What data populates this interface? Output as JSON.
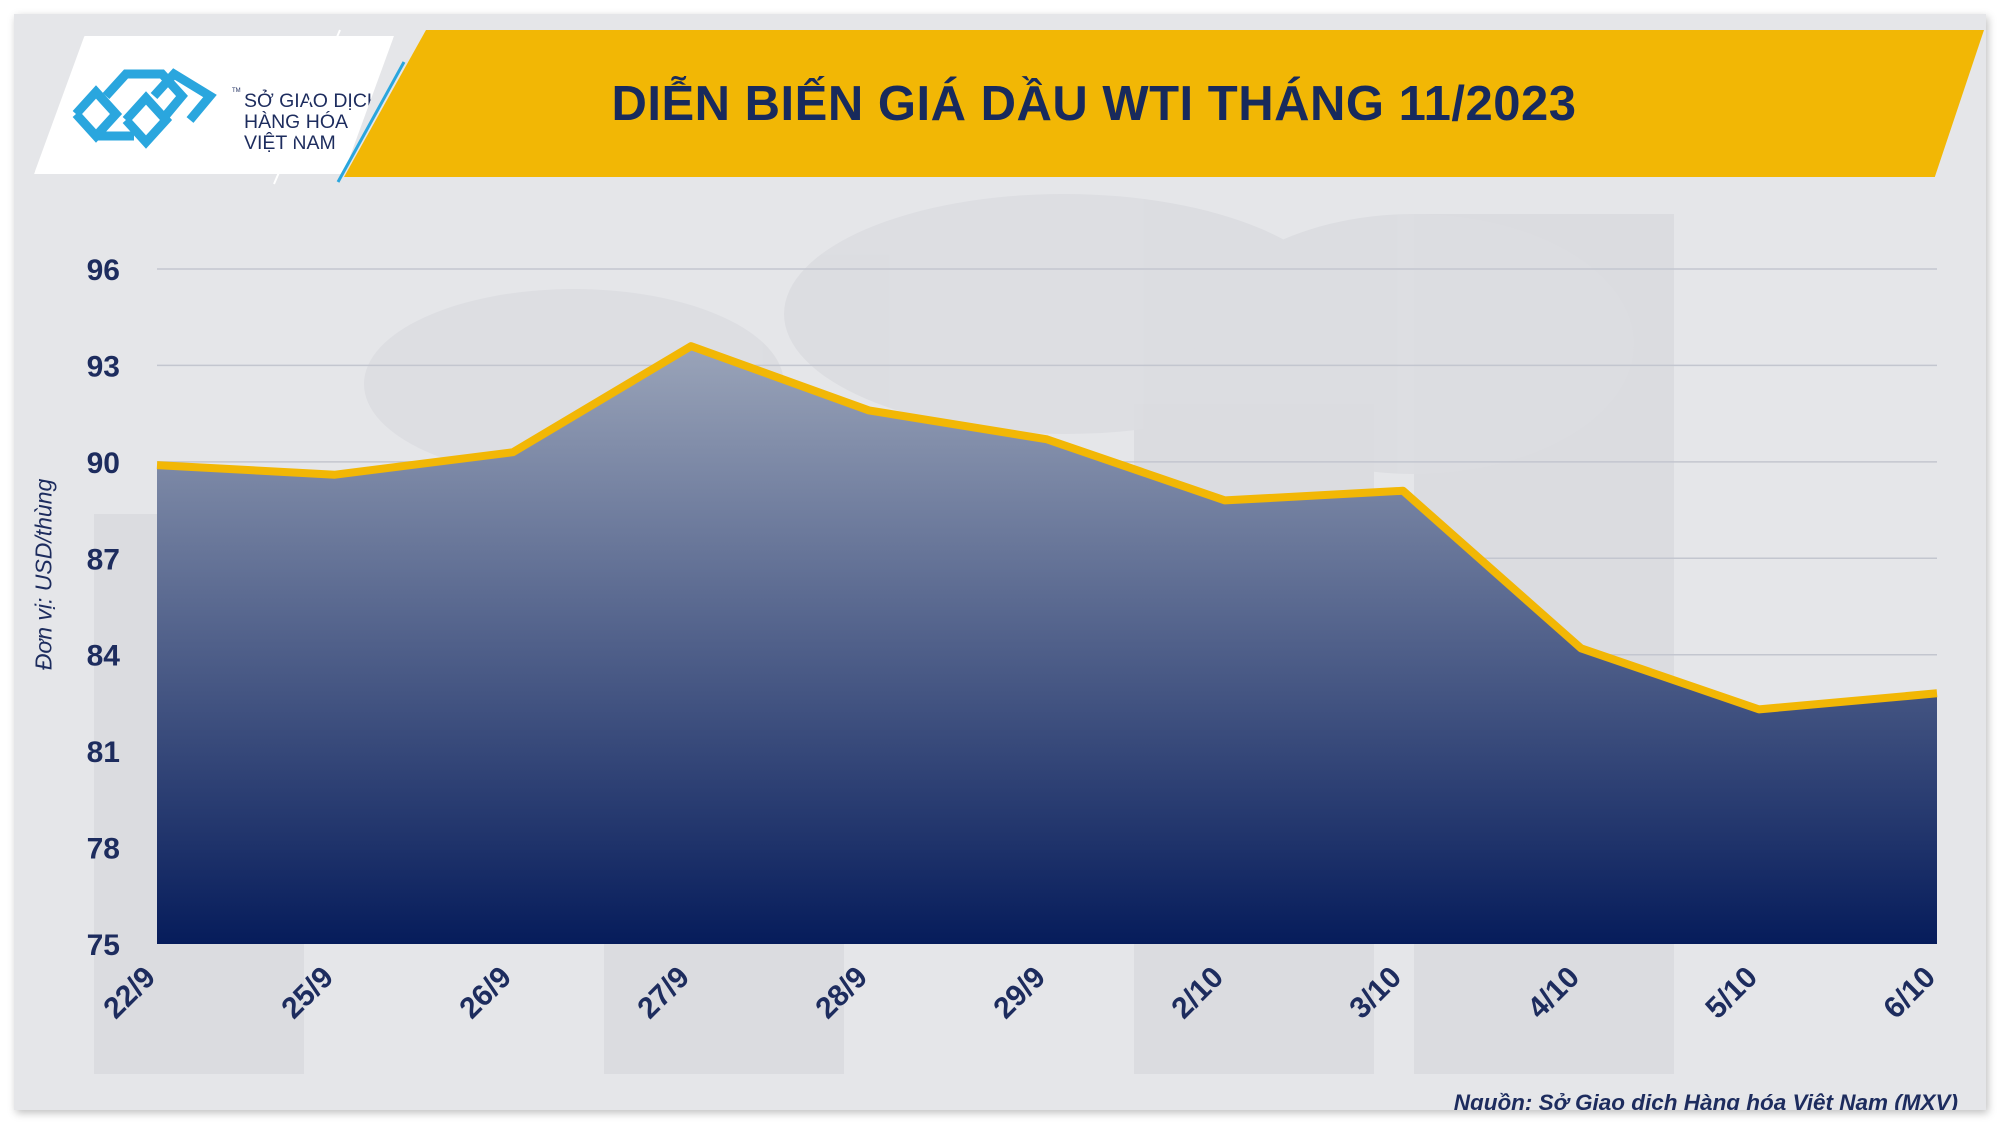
{
  "logo": {
    "lines": [
      "SỞ GIAO DỊCH",
      "HÀNG HÓA",
      "VIỆT NAM"
    ],
    "tm": "TM"
  },
  "chart_data": {
    "type": "area",
    "title": "DIỄN BIẾN GIÁ DẦU WTI THÁNG 11/2023",
    "ylabel": "Đơn vị: USD/thùng",
    "xlabel": "",
    "categories": [
      "22/9",
      "25/9",
      "26/9",
      "27/9",
      "28/9",
      "29/9",
      "2/10",
      "3/10",
      "4/10",
      "5/10",
      "6/10"
    ],
    "values": [
      89.9,
      89.6,
      90.3,
      93.6,
      91.6,
      90.7,
      88.8,
      89.1,
      84.2,
      82.3,
      82.8
    ],
    "ylim": [
      75,
      96
    ],
    "yticks": [
      75,
      78,
      81,
      84,
      87,
      90,
      93,
      96
    ],
    "grid": true,
    "legend": "none",
    "colors": {
      "line": "#f2b705",
      "area_top": "#9aa4b9",
      "area_bottom": "#061c5b",
      "text": "#1d2c5e",
      "banner": "#f2b705"
    }
  },
  "source": "Nguồn: Sở Giao dịch Hàng hóa Việt Nam (MXV)"
}
